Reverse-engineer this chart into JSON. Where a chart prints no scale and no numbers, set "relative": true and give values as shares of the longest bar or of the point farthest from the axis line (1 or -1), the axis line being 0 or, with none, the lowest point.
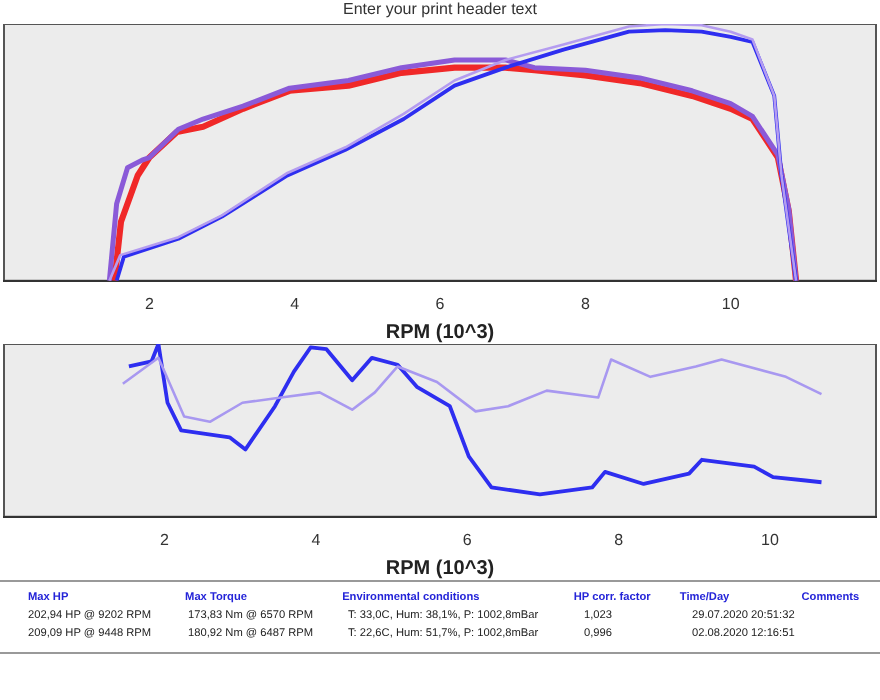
{
  "chart_data": [
    {
      "type": "line",
      "title": "Enter your print header text",
      "relative": true,
      "xlabel": "RPM (10^3)",
      "xlim": [
        0,
        12
      ],
      "xticks": [
        2,
        4,
        6,
        8,
        10
      ],
      "legend": false,
      "marker": "none",
      "series": [
        {
          "color": "#b49cf0",
          "x": [
            1.45,
            1.6,
            2.4,
            3.0,
            3.9,
            4.7,
            5.5,
            6.2,
            6.9,
            7.7,
            8.6,
            9.1,
            9.6,
            10.0,
            10.3,
            10.6,
            10.7,
            10.9
          ],
          "values": [
            0,
            0.1,
            0.17,
            0.255,
            0.42,
            0.52,
            0.65,
            0.78,
            0.86,
            0.92,
            0.99,
            1.0,
            0.995,
            0.97,
            0.94,
            0.72,
            0.41,
            0
          ]
        },
        {
          "color": "#2e2ef0",
          "x": [
            1.55,
            1.65,
            2.4,
            3.0,
            3.9,
            4.7,
            5.5,
            6.2,
            6.9,
            7.7,
            8.6,
            9.1,
            9.6,
            10.0,
            10.3,
            10.6,
            10.7,
            10.9
          ],
          "values": [
            0,
            0.094,
            0.164,
            0.25,
            0.41,
            0.51,
            0.63,
            0.76,
            0.83,
            0.9,
            0.97,
            0.976,
            0.97,
            0.95,
            0.93,
            0.72,
            0.41,
            0
          ]
        },
        {
          "color": "#8a5ad8",
          "x": [
            1.45,
            1.55,
            1.7,
            1.9,
            2.0,
            2.4,
            2.74,
            3.29,
            3.93,
            4.74,
            5.47,
            6.2,
            6.9,
            7.3,
            8.0,
            8.75,
            9.47,
            10.0,
            10.3,
            10.65,
            10.8,
            10.9
          ],
          "values": [
            0,
            0.3,
            0.44,
            0.47,
            0.48,
            0.59,
            0.63,
            0.68,
            0.75,
            0.78,
            0.83,
            0.86,
            0.86,
            0.83,
            0.82,
            0.79,
            0.74,
            0.69,
            0.64,
            0.49,
            0.28,
            0
          ]
        },
        {
          "color": "#f02828",
          "x": [
            1.52,
            1.61,
            1.84,
            2.0,
            2.38,
            2.74,
            3.29,
            3.93,
            4.74,
            5.47,
            6.2,
            6.9,
            7.3,
            8.0,
            8.75,
            9.47,
            10.0,
            10.3,
            10.65,
            10.8,
            10.9
          ],
          "values": [
            0,
            0.23,
            0.41,
            0.48,
            0.58,
            0.6,
            0.67,
            0.74,
            0.76,
            0.81,
            0.83,
            0.83,
            0.82,
            0.8,
            0.77,
            0.72,
            0.67,
            0.63,
            0.48,
            0.27,
            0
          ]
        }
      ]
    },
    {
      "type": "line",
      "relative": true,
      "xlabel": "RPM (10^3)",
      "xlim": [
        -0.12,
        11.4
      ],
      "xticks": [
        2,
        4,
        6,
        8,
        10
      ],
      "legend": false,
      "marker": "none",
      "series": [
        {
          "color": "#a898f0",
          "x": [
            1.45,
            1.92,
            2.26,
            2.6,
            3.03,
            3.54,
            4.05,
            4.48,
            4.78,
            5.08,
            5.6,
            6.11,
            6.54,
            7.05,
            7.73,
            7.9,
            8.42,
            9.02,
            9.36,
            10.21,
            10.68
          ],
          "values": [
            0.77,
            0.92,
            0.58,
            0.55,
            0.66,
            0.69,
            0.72,
            0.62,
            0.72,
            0.87,
            0.78,
            0.61,
            0.64,
            0.73,
            0.69,
            0.91,
            0.81,
            0.87,
            0.91,
            0.81,
            0.71
          ]
        },
        {
          "color": "#2e2ef0",
          "x": [
            1.53,
            1.83,
            1.92,
            2.04,
            2.22,
            2.86,
            3.07,
            3.46,
            3.71,
            3.93,
            4.14,
            4.48,
            4.74,
            5.08,
            5.34,
            5.77,
            6.02,
            6.32,
            6.96,
            7.65,
            7.82,
            8.33,
            8.93,
            9.1,
            9.79,
            10.04,
            10.47,
            10.68
          ],
          "values": [
            0.87,
            0.9,
            1.0,
            0.66,
            0.5,
            0.46,
            0.39,
            0.64,
            0.84,
            0.98,
            0.97,
            0.79,
            0.92,
            0.88,
            0.75,
            0.64,
            0.35,
            0.17,
            0.13,
            0.17,
            0.26,
            0.19,
            0.25,
            0.33,
            0.29,
            0.23,
            0.21,
            0.2
          ]
        }
      ]
    },
    {
      "type": "other",
      "annotations": [
        "Max HP",
        "Max Torque",
        "Environmental conditions",
        "HP corr. factor",
        "Time/Day",
        "Comments",
        "202,94 HP @ 9202 RPM",
        "173,83 Nm @ 6570 RPM",
        "T: 33,0C, Hum: 38,1%, P: 1002,8mBar",
        "1,023",
        "29.07.2020 20:51:32",
        "209,09 HP @ 9448 RPM",
        "180,92 Nm @ 6487 RPM",
        "T: 22,6C, Hum: 51,7%, P: 1002,8mBar",
        "0,996",
        "02.08.2020 12:16:51"
      ]
    }
  ]
}
